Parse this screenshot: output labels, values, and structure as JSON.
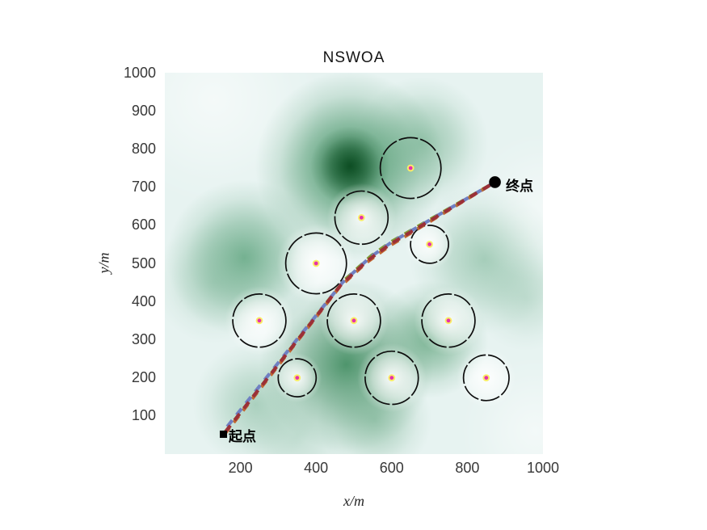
{
  "figure": {
    "title": "NSWOA"
  },
  "axes": {
    "xlabel": "x/m",
    "ylabel": "y/m",
    "xlim": [
      0,
      1000
    ],
    "ylim": [
      0,
      1000
    ],
    "x_ticks": [
      200,
      400,
      600,
      800,
      1000
    ],
    "y_ticks": [
      100,
      200,
      300,
      400,
      500,
      600,
      700,
      800,
      900,
      1000
    ],
    "tick_color": "#383838"
  },
  "chart_data": {
    "type": "scatter",
    "title": "NSWOA",
    "xlabel": "x/m",
    "ylabel": "y/m",
    "xlim": [
      0,
      1000
    ],
    "ylim": [
      0,
      1000
    ],
    "grid": false,
    "legend": "none",
    "start": {
      "label": "起点",
      "x": 155,
      "y": 52,
      "marker": "square",
      "color": "#000000"
    },
    "end": {
      "label": "终点",
      "x": 873,
      "y": 713,
      "marker": "circle",
      "color": "#000000"
    },
    "obstacles": [
      {
        "x": 650,
        "y": 750,
        "r": 80,
        "glow": false
      },
      {
        "x": 520,
        "y": 620,
        "r": 70,
        "glow": true
      },
      {
        "x": 700,
        "y": 550,
        "r": 50,
        "glow": true
      },
      {
        "x": 400,
        "y": 500,
        "r": 80,
        "glow": true
      },
      {
        "x": 250,
        "y": 350,
        "r": 70,
        "glow": true
      },
      {
        "x": 500,
        "y": 350,
        "r": 70,
        "glow": true
      },
      {
        "x": 750,
        "y": 350,
        "r": 70,
        "glow": true
      },
      {
        "x": 350,
        "y": 200,
        "r": 50,
        "glow": true
      },
      {
        "x": 600,
        "y": 200,
        "r": 70,
        "glow": true
      },
      {
        "x": 850,
        "y": 200,
        "r": 60,
        "glow": true
      }
    ],
    "obstacle_style": {
      "edge_color": "#0d0d0d",
      "center_dot_color": "#e531ac",
      "center_dot_ring_color": "#f9ed67"
    },
    "paths": [
      {
        "name": "path-sienna",
        "color": "#c2662f",
        "points": [
          [
            158,
            52
          ],
          [
            462,
            438
          ],
          [
            533,
            502
          ],
          [
            594,
            546
          ],
          [
            873,
            713
          ]
        ]
      },
      {
        "name": "path-olive",
        "color": "#7f9c35",
        "points": [
          [
            160,
            58
          ],
          [
            474,
            455
          ],
          [
            547,
            521
          ],
          [
            601,
            558
          ],
          [
            873,
            713
          ]
        ]
      },
      {
        "name": "path-blue",
        "color": "#7080c2",
        "points": [
          [
            165,
            72
          ],
          [
            470,
            450
          ],
          [
            543,
            516
          ],
          [
            599,
            555
          ],
          [
            873,
            713
          ]
        ]
      },
      {
        "name": "path-maroon",
        "color": "#9b3038",
        "points": [
          [
            160,
            58
          ],
          [
            466,
            444
          ],
          [
            538,
            509
          ],
          [
            597,
            551
          ],
          [
            873,
            713
          ]
        ]
      }
    ],
    "field": {
      "base_color": "#e7f3f1",
      "blobs": [
        {
          "x": 490,
          "y": 755,
          "r": 250,
          "color": "#2e8653",
          "alpha": 0.9
        },
        {
          "x": 490,
          "y": 755,
          "r": 105,
          "color": "#0b4a20",
          "alpha": 0.95
        },
        {
          "x": 210,
          "y": 515,
          "r": 205,
          "color": "#57a078",
          "alpha": 0.8
        },
        {
          "x": 480,
          "y": 235,
          "r": 230,
          "color": "#3d8a5d",
          "alpha": 0.9
        },
        {
          "x": 555,
          "y": 90,
          "r": 150,
          "color": "#5fa37c",
          "alpha": 0.5
        },
        {
          "x": 700,
          "y": 300,
          "r": 155,
          "color": "#4f9a6e",
          "alpha": 0.7
        },
        {
          "x": 845,
          "y": 510,
          "r": 195,
          "color": "#6fae8c",
          "alpha": 0.55
        },
        {
          "x": 680,
          "y": 815,
          "r": 175,
          "color": "#58a077",
          "alpha": 0.55
        },
        {
          "x": 240,
          "y": 130,
          "r": 165,
          "color": "#6fae8c",
          "alpha": 0.5
        },
        {
          "x": 130,
          "y": 450,
          "r": 160,
          "color": "#79b394",
          "alpha": 0.4
        },
        {
          "x": 955,
          "y": 410,
          "r": 140,
          "color": "#82b89b",
          "alpha": 0.35
        },
        {
          "x": 350,
          "y": 45,
          "r": 150,
          "color": "#82b89b",
          "alpha": 0.35
        },
        {
          "x": 130,
          "y": 930,
          "r": 280,
          "color": "#ffffff",
          "alpha": 0.55
        },
        {
          "x": 980,
          "y": 60,
          "r": 200,
          "color": "#ffffff",
          "alpha": 0.5
        },
        {
          "x": 1000,
          "y": 650,
          "r": 200,
          "color": "#ffffff",
          "alpha": 0.45
        }
      ]
    }
  }
}
